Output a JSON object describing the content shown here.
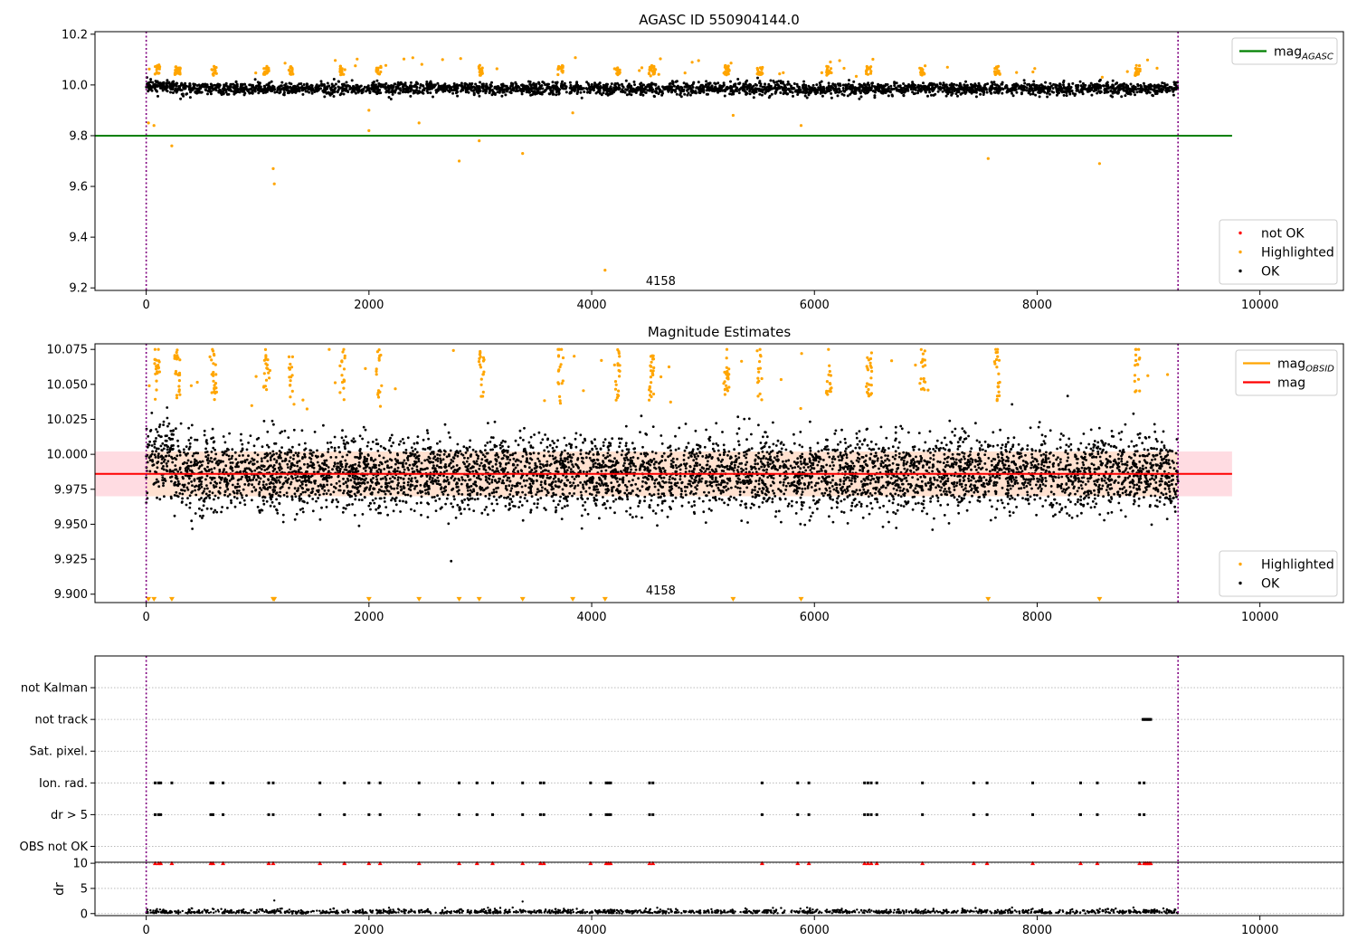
{
  "chart_data": [
    {
      "type": "scatter",
      "title": "AGASC ID 550904144.0",
      "xlim": [
        -460,
        10750
      ],
      "ylim": [
        9.19,
        10.21
      ],
      "xticks": [
        0,
        2000,
        4000,
        6000,
        8000,
        10000
      ],
      "yticks": [
        9.2,
        9.4,
        9.6,
        9.8,
        10.0,
        10.2
      ],
      "ytick_labels": [
        "9.2",
        "9.4",
        "9.6",
        "9.8",
        "10.0",
        "10.2"
      ],
      "obs_bounds": [
        0,
        9265
      ],
      "annotation": {
        "text": "4158",
        "x": 4620,
        "y": 9.23
      },
      "reference_line": {
        "label": "mag",
        "sub": "AGASC",
        "value": 9.8,
        "x_range": [
          -460,
          9750
        ],
        "color": "#008000"
      },
      "series": [
        {
          "name": "OK",
          "color": "#000000",
          "y_center": 9.985,
          "y_spread": 0.012,
          "x_range": [
            0,
            9265
          ],
          "n": 3200
        },
        {
          "name": "Highlighted",
          "color": "#FFA500",
          "clusters": [
            100,
            280,
            610,
            1080,
            1300,
            1760,
            2090,
            3010,
            3720,
            4230,
            4540,
            5210,
            5510,
            6130,
            6490,
            6970,
            7640,
            8900
          ],
          "y_center": 10.075
        },
        {
          "name": "not OK",
          "color": "#FF0000",
          "values": []
        }
      ],
      "highlighted_outliers": [
        [
          20,
          9.85
        ],
        [
          70,
          9.84
        ],
        [
          230,
          9.76
        ],
        [
          1140,
          9.67
        ],
        [
          1150,
          9.61
        ],
        [
          2000,
          9.9
        ],
        [
          2000,
          9.82
        ],
        [
          2450,
          9.85
        ],
        [
          2810,
          9.7
        ],
        [
          2990,
          9.78
        ],
        [
          3380,
          9.73
        ],
        [
          3830,
          9.89
        ],
        [
          4120,
          9.27
        ],
        [
          5270,
          9.88
        ],
        [
          5880,
          9.84
        ],
        [
          7560,
          9.71
        ],
        [
          8560,
          9.69
        ]
      ],
      "legends": [
        {
          "position": "top-right",
          "entries": [
            {
              "label": "mag",
              "sub": "AGASC",
              "color": "#008000",
              "kind": "line"
            }
          ]
        },
        {
          "position": "lower-right",
          "entries": [
            {
              "label": "not OK",
              "color": "#FF0000",
              "kind": "dot"
            },
            {
              "label": "Highlighted",
              "color": "#FFA500",
              "kind": "dot"
            },
            {
              "label": "OK",
              "color": "#000000",
              "kind": "dot"
            }
          ]
        }
      ]
    },
    {
      "type": "scatter",
      "title": "Magnitude Estimates",
      "xlim": [
        -460,
        10750
      ],
      "ylim": [
        9.894,
        10.079
      ],
      "xticks": [
        0,
        2000,
        4000,
        6000,
        8000,
        10000
      ],
      "yticks": [
        9.9,
        9.925,
        9.95,
        9.975,
        10.0,
        10.025,
        10.05,
        10.075
      ],
      "ytick_labels": [
        "9.900",
        "9.925",
        "9.950",
        "9.975",
        "10.000",
        "10.025",
        "10.050",
        "10.075"
      ],
      "obs_bounds": [
        0,
        9265
      ],
      "annotation": {
        "text": "4158",
        "x": 4620,
        "y": 9.903
      },
      "mag_line": {
        "label": "mag",
        "value": 9.986,
        "x_range": [
          -460,
          9750
        ],
        "color": "#FF0000"
      },
      "mag_band": {
        "low": 9.97,
        "high": 10.002,
        "x_range": [
          -460,
          9750
        ],
        "color": "#FFC0CB"
      },
      "obsid_band": {
        "low": 9.97,
        "high": 10.002,
        "x_range": [
          0,
          9265
        ],
        "color": "#FFE4C4"
      },
      "series": [
        {
          "name": "OK",
          "color": "#000000",
          "y_center": 9.986,
          "y_spread": 0.013,
          "x_range": [
            0,
            9265
          ],
          "n": 5500
        },
        {
          "name": "Highlighted",
          "color": "#FFA500",
          "clusters": [
            100,
            280,
            610,
            1080,
            1300,
            1760,
            2090,
            3010,
            3720,
            4230,
            4540,
            5210,
            5510,
            6130,
            6490,
            6970,
            7640,
            8900
          ]
        }
      ],
      "clipped_low_markers_x": [
        20,
        70,
        230,
        1140,
        1150,
        2000,
        2450,
        2810,
        2990,
        3380,
        3830,
        4120,
        5270,
        5880,
        7560,
        8560
      ],
      "legends": [
        {
          "position": "top-right",
          "entries": [
            {
              "label": "mag",
              "sub": "OBSID",
              "color": "#FFA500",
              "kind": "line"
            },
            {
              "label": "mag",
              "color": "#FF0000",
              "kind": "line"
            }
          ]
        },
        {
          "position": "lower-right",
          "entries": [
            {
              "label": "Highlighted",
              "color": "#FFA500",
              "kind": "dot"
            },
            {
              "label": "OK",
              "color": "#000000",
              "kind": "dot"
            }
          ]
        }
      ]
    },
    {
      "type": "scatter",
      "title": "",
      "xlim": [
        -460,
        10750
      ],
      "ylim": [
        -0.5,
        6.0
      ],
      "obs_bounds": [
        0,
        9265
      ],
      "category_labels": [
        "OBS not OK",
        "dr > 5",
        "Ion. rad.",
        "Sat. pixel.",
        "not track",
        "not Kalman"
      ],
      "flag_events": {
        "dr > 5": [
          80,
          110,
          130,
          580,
          600,
          690,
          1100,
          1140,
          1560,
          1780,
          2000,
          2100,
          2450,
          2810,
          2970,
          3110,
          3380,
          3540,
          3570,
          3990,
          4130,
          4150,
          4170,
          4520,
          4550,
          5530,
          5850,
          5950,
          6450,
          6480,
          6510,
          6560,
          6970,
          7430,
          7550,
          7960,
          8390,
          8540,
          8920,
          8960
        ],
        "Ion. rad.": [
          80,
          110,
          130,
          230,
          580,
          600,
          690,
          1100,
          1140,
          1560,
          1780,
          2000,
          2100,
          2450,
          2810,
          2970,
          3110,
          3380,
          3540,
          3570,
          3990,
          4130,
          4150,
          4170,
          4520,
          4550,
          5530,
          5850,
          5950,
          6450,
          6480,
          6510,
          6560,
          6970,
          7430,
          7550,
          7960,
          8390,
          8540,
          8920,
          8960
        ],
        "not track": [
          8950,
          8960,
          8970,
          8980,
          8990,
          9000,
          9010,
          9020
        ],
        "Sat. pixel.": [],
        "not Kalman": [],
        "OBS not OK": []
      }
    },
    {
      "type": "scatter",
      "title": "",
      "ylabel": "dr",
      "xlim": [
        -460,
        10750
      ],
      "ylim": [
        -0.4,
        10.2
      ],
      "xticks": [
        0,
        2000,
        4000,
        6000,
        8000,
        10000
      ],
      "yticks": [
        0,
        5,
        10
      ],
      "ytick_labels": [
        "0",
        "5",
        "10"
      ],
      "obs_bounds": [
        0,
        9265
      ],
      "dr_points": {
        "color": "#000000",
        "x_range": [
          0,
          9265
        ],
        "n": 1400,
        "typical_max": 1.2
      },
      "dr_outliers": [
        [
          1150,
          2.6
        ],
        [
          3380,
          2.4
        ]
      ],
      "clipped_markers": {
        "color": "#FF0000",
        "value": 10,
        "x": [
          80,
          110,
          130,
          230,
          580,
          600,
          690,
          1100,
          1140,
          1560,
          1780,
          2000,
          2100,
          2450,
          2810,
          2970,
          3110,
          3380,
          3540,
          3570,
          3990,
          4130,
          4150,
          4170,
          4520,
          4550,
          5530,
          5850,
          5950,
          6450,
          6480,
          6510,
          6560,
          6970,
          7430,
          7550,
          7960,
          8390,
          8540,
          8920,
          8960,
          8975,
          8990,
          9005,
          9020
        ]
      }
    }
  ]
}
